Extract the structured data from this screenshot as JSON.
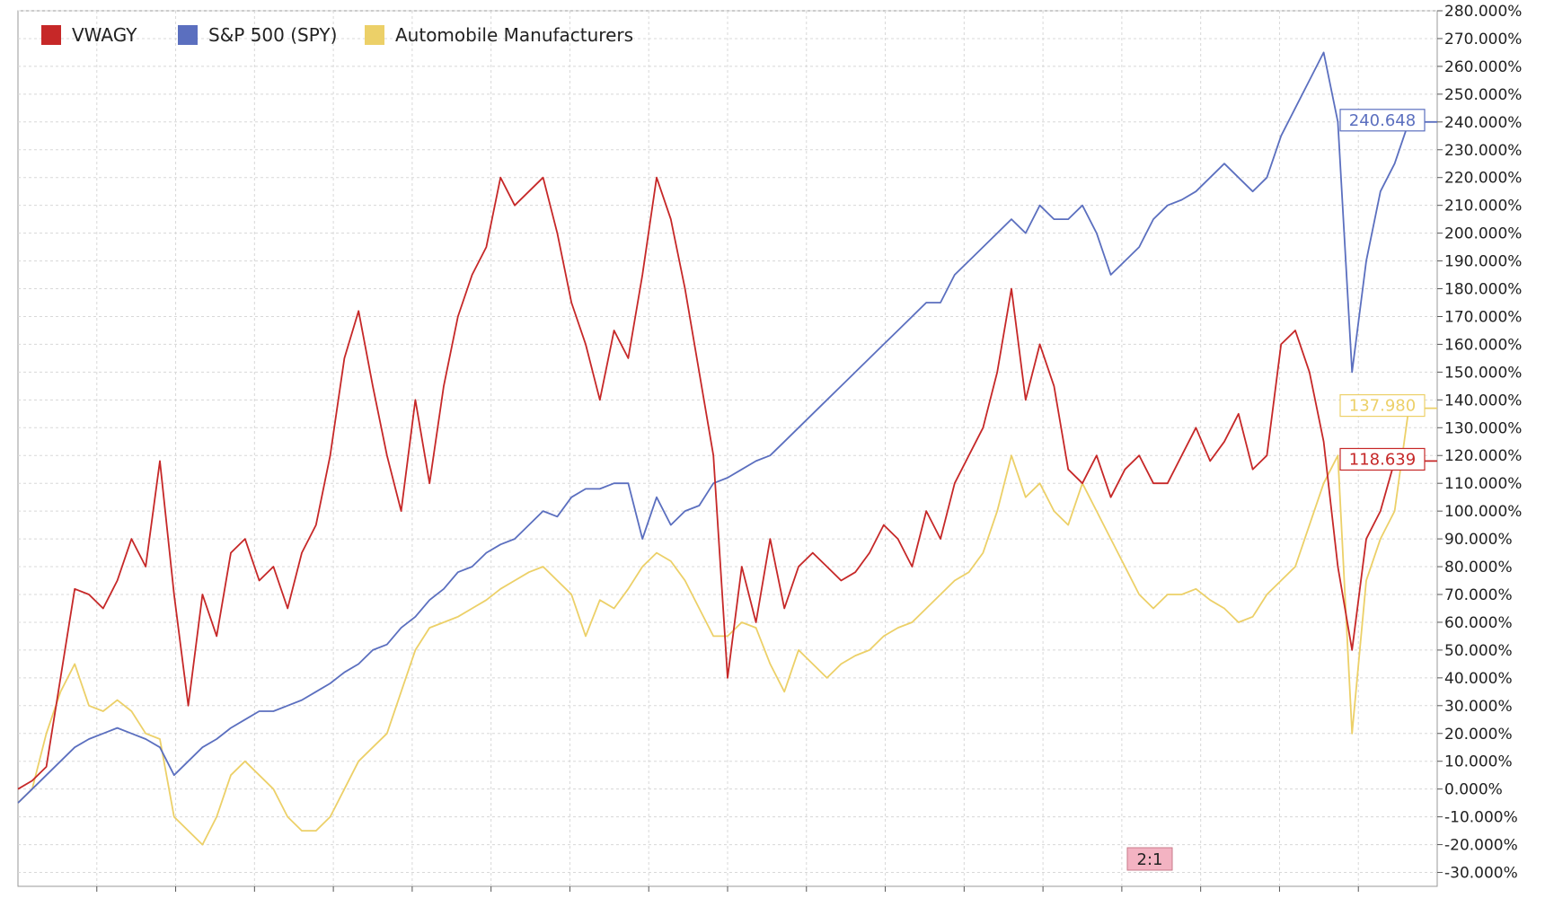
{
  "legend": [
    {
      "label": "VWAGY",
      "color": "#c62828"
    },
    {
      "label": "S&P 500 (SPY)",
      "color": "#5b6fbf"
    },
    {
      "label": "Automobile Manufacturers",
      "color": "#ecd068"
    }
  ],
  "split_badge": "2:1",
  "chart_data": {
    "type": "line",
    "title": "",
    "xlabel": "",
    "ylabel": "",
    "ylim": [
      -35,
      280
    ],
    "y_ticks": [
      280,
      270,
      260,
      250,
      240,
      230,
      220,
      210,
      200,
      190,
      180,
      170,
      160,
      150,
      140,
      130,
      120,
      110,
      100,
      90,
      80,
      70,
      60,
      50,
      40,
      30,
      20,
      10,
      0,
      -10,
      -20,
      -30
    ],
    "y_tick_suffix": ".000%",
    "grid": true,
    "legend_position": "top-left",
    "x": [
      0,
      1,
      2,
      3,
      4,
      5,
      6,
      7,
      8,
      9,
      10,
      11,
      12,
      13,
      14,
      15,
      16,
      17,
      18,
      19,
      20,
      21,
      22,
      23,
      24,
      25,
      26,
      27,
      28,
      29,
      30,
      31,
      32,
      33,
      34,
      35,
      36,
      37,
      38,
      39,
      40,
      41,
      42,
      43,
      44,
      45,
      46,
      47,
      48,
      49,
      50,
      51,
      52,
      53,
      54,
      55,
      56,
      57,
      58,
      59,
      60,
      61,
      62,
      63,
      64,
      65,
      66,
      67,
      68,
      69,
      70,
      71,
      72,
      73,
      74,
      75,
      76,
      77,
      78,
      79,
      80,
      81,
      82,
      83,
      84,
      85,
      86,
      87,
      88,
      89,
      90,
      91,
      92,
      93,
      94,
      95,
      96,
      97,
      98,
      99,
      100
    ],
    "series": [
      {
        "name": "VWAGY",
        "color": "#c62828",
        "end_label": "118.639",
        "values": [
          0,
          3,
          8,
          40,
          72,
          70,
          65,
          75,
          90,
          80,
          118,
          70,
          30,
          70,
          55,
          85,
          90,
          75,
          80,
          65,
          85,
          95,
          120,
          155,
          172,
          145,
          120,
          100,
          140,
          110,
          145,
          170,
          185,
          195,
          220,
          210,
          215,
          220,
          200,
          175,
          160,
          140,
          165,
          155,
          185,
          220,
          205,
          180,
          150,
          120,
          40,
          80,
          60,
          90,
          65,
          80,
          85,
          80,
          75,
          78,
          85,
          95,
          90,
          80,
          100,
          90,
          110,
          120,
          130,
          150,
          180,
          140,
          160,
          145,
          115,
          110,
          120,
          105,
          115,
          120,
          110,
          110,
          120,
          130,
          118,
          125,
          135,
          115,
          120,
          160,
          165,
          150,
          125,
          80,
          50,
          90,
          100,
          118,
          118,
          118,
          118
        ]
      },
      {
        "name": "S&P 500 (SPY)",
        "color": "#5b6fbf",
        "end_label": "240.648",
        "values": [
          -5,
          0,
          5,
          10,
          15,
          18,
          20,
          22,
          20,
          18,
          15,
          5,
          10,
          15,
          18,
          22,
          25,
          28,
          28,
          30,
          32,
          35,
          38,
          42,
          45,
          50,
          52,
          58,
          62,
          68,
          72,
          78,
          80,
          85,
          88,
          90,
          95,
          100,
          98,
          105,
          108,
          108,
          110,
          110,
          90,
          105,
          95,
          100,
          102,
          110,
          112,
          115,
          118,
          120,
          125,
          130,
          135,
          140,
          145,
          150,
          155,
          160,
          165,
          170,
          175,
          175,
          185,
          190,
          195,
          200,
          205,
          200,
          210,
          205,
          205,
          210,
          200,
          185,
          190,
          195,
          205,
          210,
          212,
          215,
          220,
          225,
          220,
          215,
          220,
          235,
          245,
          255,
          265,
          240,
          150,
          190,
          215,
          225,
          240,
          240,
          240
        ]
      },
      {
        "name": "Automobile Manufacturers",
        "color": "#ecd068",
        "end_label": "137.980",
        "values": [
          -5,
          0,
          20,
          35,
          45,
          30,
          28,
          32,
          28,
          20,
          18,
          -10,
          -15,
          -20,
          -10,
          5,
          10,
          5,
          0,
          -10,
          -15,
          -15,
          -10,
          0,
          10,
          15,
          20,
          35,
          50,
          58,
          60,
          62,
          65,
          68,
          72,
          75,
          78,
          80,
          75,
          70,
          55,
          68,
          65,
          72,
          80,
          85,
          82,
          75,
          65,
          55,
          55,
          60,
          58,
          45,
          35,
          50,
          45,
          40,
          45,
          48,
          50,
          55,
          58,
          60,
          65,
          70,
          75,
          78,
          85,
          100,
          120,
          105,
          110,
          100,
          95,
          110,
          100,
          90,
          80,
          70,
          65,
          70,
          70,
          72,
          68,
          65,
          60,
          62,
          70,
          75,
          80,
          95,
          110,
          120,
          20,
          75,
          90,
          100,
          137,
          137,
          137
        ]
      }
    ]
  }
}
